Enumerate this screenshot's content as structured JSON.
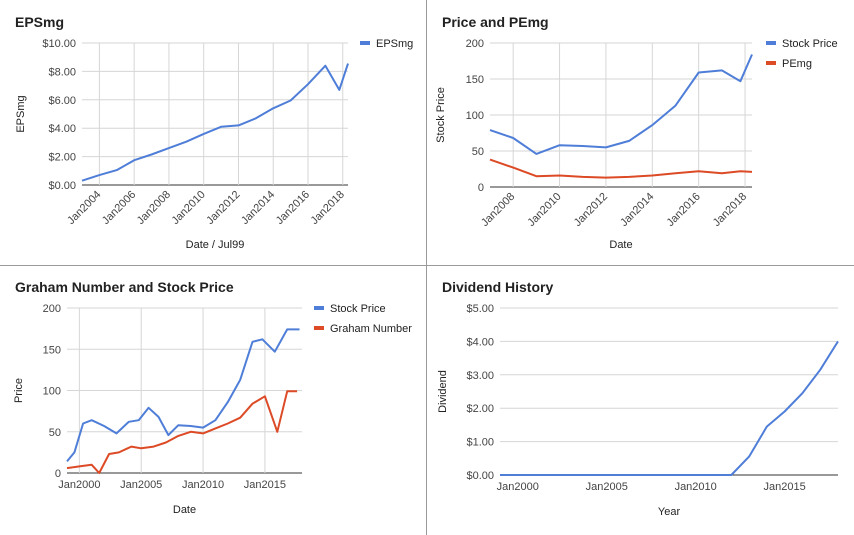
{
  "chart_data": [
    {
      "type": "line",
      "title": "EPSmg",
      "xlabel": "Date / Jul99",
      "ylabel": "EPSmg",
      "ylim": [
        0,
        10
      ],
      "yticks": [
        0,
        2,
        4,
        6,
        8,
        10
      ],
      "ytick_labels": [
        "$0.00",
        "$2.00",
        "$4.00",
        "$6.00",
        "$8.00",
        "$10.00"
      ],
      "xlim": [
        2003,
        2018.3
      ],
      "xticks": [
        2004,
        2006,
        2008,
        2010,
        2012,
        2014,
        2016,
        2018
      ],
      "xtick_labels": [
        "Jan2004",
        "Jan2006",
        "Jan2008",
        "Jan2010",
        "Jan2012",
        "Jan2014",
        "Jan2016",
        "Jan2018"
      ],
      "xtick_rotated": true,
      "grid": "vertical and horizontal",
      "legend": "right",
      "series": [
        {
          "name": "EPSmg",
          "color": "#4f7ed8",
          "x": [
            2003.0,
            2004.0,
            2005.0,
            2006.0,
            2007.0,
            2008.0,
            2009.0,
            2010.0,
            2011.0,
            2012.0,
            2013.0,
            2014.0,
            2015.0,
            2016.0,
            2017.0,
            2017.8,
            2018.3
          ],
          "y": [
            0.3,
            0.7,
            1.05,
            1.75,
            2.15,
            2.6,
            3.05,
            3.6,
            4.1,
            4.2,
            4.7,
            5.4,
            5.95,
            7.1,
            8.4,
            6.7,
            8.55
          ]
        }
      ]
    },
    {
      "type": "line",
      "title": "Price and PEmg",
      "xlabel": "Date",
      "ylabel": "Stock Price",
      "ylim": [
        0,
        200
      ],
      "yticks": [
        0,
        50,
        100,
        150,
        200
      ],
      "ytick_labels": [
        "0",
        "50",
        "100",
        "150",
        "200"
      ],
      "xlim": [
        2007,
        2018.3
      ],
      "xticks": [
        2008,
        2010,
        2012,
        2014,
        2016,
        2018
      ],
      "xtick_labels": [
        "Jan2008",
        "Jan2010",
        "Jan2012",
        "Jan2014",
        "Jan2016",
        "Jan2018"
      ],
      "xtick_rotated": true,
      "grid": "vertical and horizontal",
      "legend": "right",
      "series": [
        {
          "name": "Stock Price",
          "color": "#4f7ed8",
          "x": [
            2007,
            2008,
            2009,
            2010,
            2011,
            2012,
            2013,
            2014,
            2015,
            2016,
            2017,
            2017.8,
            2018.3
          ],
          "y": [
            79,
            68,
            46,
            58,
            57,
            55,
            64,
            86,
            113,
            159,
            162,
            147,
            184
          ]
        },
        {
          "name": "PEmg",
          "color": "#dc4a26",
          "x": [
            2007,
            2008,
            2009,
            2010,
            2011,
            2012,
            2013,
            2014,
            2015,
            2016,
            2017,
            2017.8,
            2018.3
          ],
          "y": [
            38,
            27,
            15,
            16,
            14,
            13,
            14,
            16,
            19,
            22,
            19,
            22,
            21
          ]
        }
      ]
    },
    {
      "type": "line",
      "title": "Graham Number and Stock Price",
      "xlabel": "Date",
      "ylabel": "Price",
      "ylim": [
        0,
        200
      ],
      "yticks": [
        0,
        50,
        100,
        150,
        200
      ],
      "ytick_labels": [
        "0",
        "50",
        "100",
        "150",
        "200"
      ],
      "xlim": [
        1999,
        2018
      ],
      "xticks": [
        2000,
        2005,
        2010,
        2015
      ],
      "xtick_labels": [
        "Jan2000",
        "Jan2005",
        "Jan2010",
        "Jan2015"
      ],
      "xtick_rotated": false,
      "grid": "vertical and horizontal",
      "legend": "right",
      "series": [
        {
          "name": "Stock Price",
          "color": "#4f7ed8",
          "x": [
            1999.0,
            1999.6,
            2000.3,
            2001.0,
            2002.0,
            2003.0,
            2004.0,
            2004.8,
            2005.6,
            2006.4,
            2007.2,
            2008.0,
            2009.0,
            2010.0,
            2011.0,
            2012.0,
            2013.0,
            2014.0,
            2014.8,
            2015.8,
            2016.8,
            2017.8
          ],
          "y": [
            14,
            25,
            60,
            64,
            57,
            48,
            62,
            64,
            79,
            68,
            46,
            58,
            57,
            55,
            64,
            86,
            113,
            159,
            162,
            147,
            174,
            174
          ]
        },
        {
          "name": "Graham Number",
          "color": "#dc4a26",
          "x": [
            1999.0,
            2000.0,
            2001.0,
            2001.6,
            2002.4,
            2003.2,
            2004.2,
            2005.0,
            2006.0,
            2007.0,
            2008.0,
            2009.0,
            2010.0,
            2011.0,
            2012.0,
            2013.0,
            2014.0,
            2015.0,
            2016.0,
            2016.8,
            2017.6
          ],
          "y": [
            6,
            8,
            10,
            0,
            23,
            25,
            32,
            30,
            32,
            37,
            45,
            50,
            48,
            54,
            60,
            67,
            84,
            93,
            50,
            99,
            99
          ]
        }
      ]
    },
    {
      "type": "line",
      "title": "Dividend History",
      "xlabel": "Year",
      "ylabel": "Dividend",
      "ylim": [
        0,
        5
      ],
      "yticks": [
        0,
        1,
        2,
        3,
        4,
        5
      ],
      "ytick_labels": [
        "$0.00",
        "$1.00",
        "$2.00",
        "$3.00",
        "$4.00",
        "$5.00"
      ],
      "xlim": [
        1999,
        2018
      ],
      "xticks": [
        2000,
        2005,
        2010,
        2015
      ],
      "xtick_labels": [
        "Jan2000",
        "Jan2005",
        "Jan2010",
        "Jan2015"
      ],
      "xtick_rotated": false,
      "grid": "horizontal",
      "legend": "none",
      "series": [
        {
          "name": "",
          "color": "#4f7ed8",
          "x": [
            1999,
            2000,
            2001,
            2002,
            2003,
            2004,
            2005,
            2006,
            2007,
            2008,
            2009,
            2010,
            2011,
            2012,
            2013,
            2014,
            2015,
            2016,
            2017,
            2018
          ],
          "y": [
            0,
            0,
            0,
            0,
            0,
            0,
            0,
            0,
            0,
            0,
            0,
            0,
            0,
            0,
            0.55,
            1.45,
            1.9,
            2.45,
            3.15,
            4.0
          ]
        }
      ]
    }
  ]
}
